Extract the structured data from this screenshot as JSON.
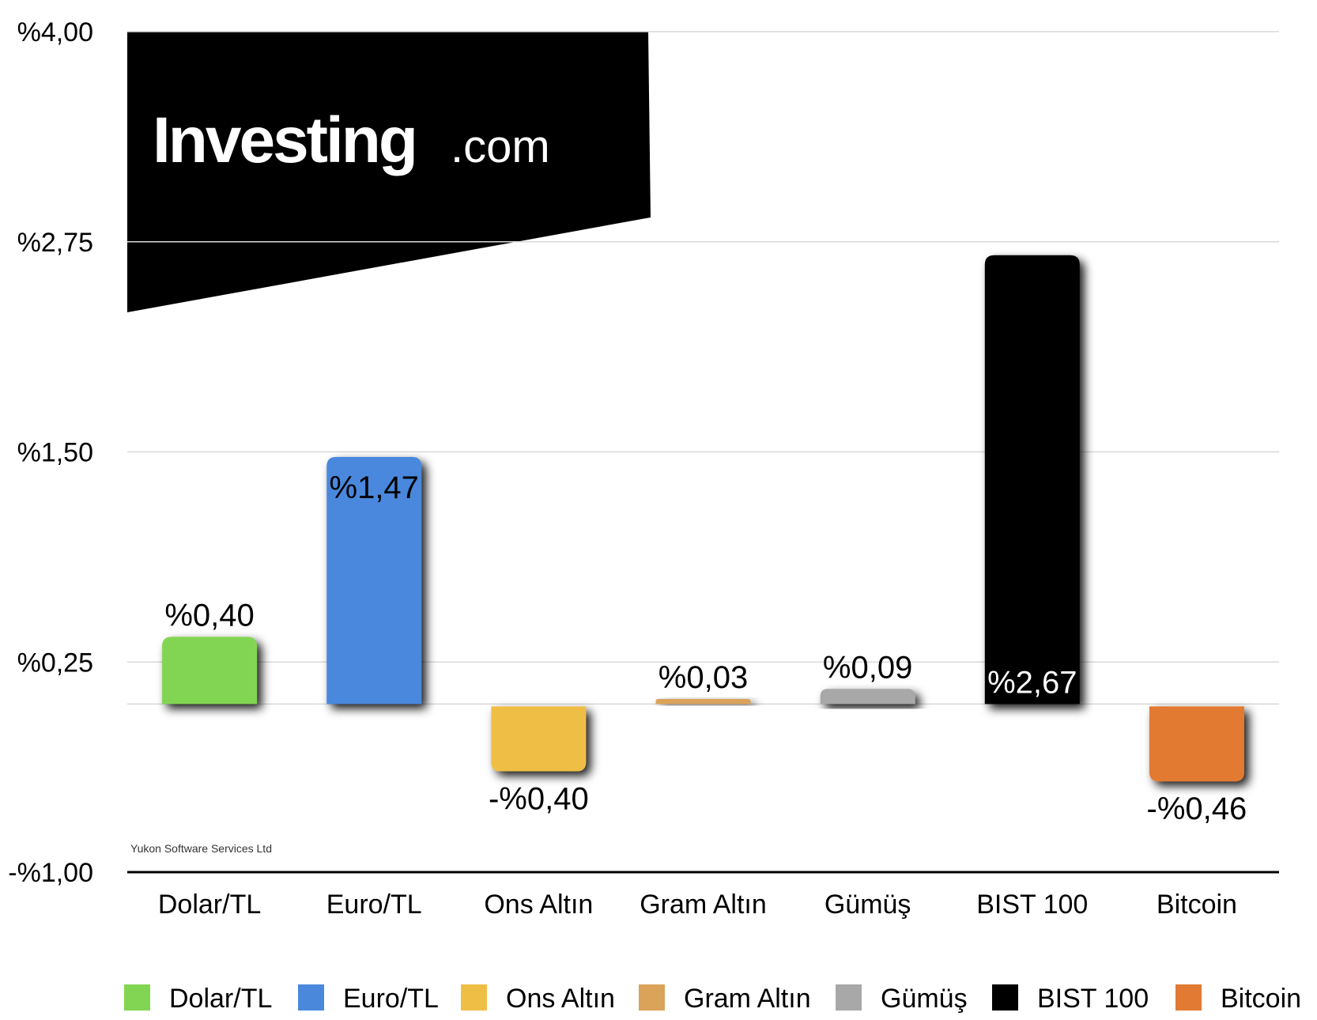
{
  "chart_data": {
    "type": "bar",
    "categories": [
      "Dolar/TL",
      "Euro/TL",
      "Ons Altın",
      "Gram Altın",
      "Gümüş",
      "BIST 100",
      "Bitcoin"
    ],
    "values": [
      0.4,
      1.47,
      -0.4,
      0.03,
      0.09,
      2.67,
      -0.46
    ],
    "value_labels": [
      "%0,40",
      "%1,47",
      "-%0,40",
      "%0,03",
      "%0,09",
      "%2,67",
      "-%0,46"
    ],
    "colors": [
      "#82d552",
      "#4a88dc",
      "#efbf45",
      "#dba35a",
      "#a8a8a8",
      "#000000",
      "#e27a33"
    ],
    "legend": [
      "Dolar/TL",
      "Euro/TL",
      "Ons Altın",
      "Gram Altın",
      "Gümüş",
      "BIST 100",
      "Bitcoin"
    ],
    "legend_position": "bottom",
    "ylim": [
      -1.0,
      4.0
    ],
    "yticks": [
      -1.0,
      0.25,
      1.5,
      2.75,
      4.0
    ],
    "ytick_labels": [
      "-%1,00",
      "%0,25",
      "%1,50",
      "%2,75",
      "%4,00"
    ],
    "grid": true,
    "title": "",
    "xlabel": "",
    "ylabel": ""
  },
  "watermark": {
    "brand": "Investing",
    "brand_suffix": ".com",
    "credit": "Yukon Software Services Ltd"
  }
}
